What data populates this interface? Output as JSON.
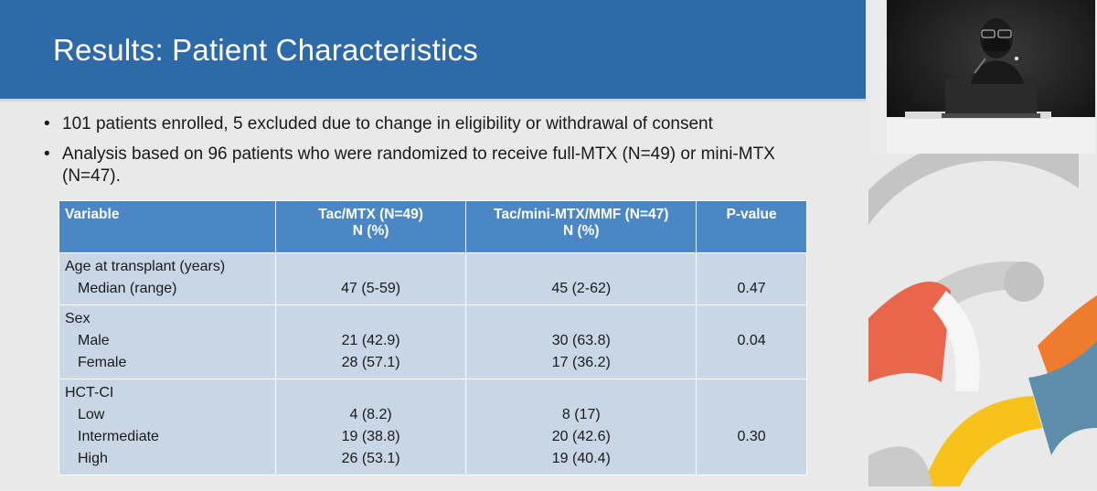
{
  "slide": {
    "title": "Results: Patient Characteristics",
    "bullets": [
      "101 patients enrolled, 5 excluded due to change in eligibility or withdrawal of consent",
      "Analysis based on 96 patients who were randomized to receive full-MTX (N=49) or mini-MTX (N=47)."
    ]
  },
  "table": {
    "headers": {
      "variable": "Variable",
      "col1_line1": "Tac/MTX (N=49)",
      "col1_line2": "N (%)",
      "col2_line1": "Tac/mini-MTX/MMF (N=47)",
      "col2_line2": "N (%)",
      "pvalue": "P-value"
    },
    "age": {
      "label": "Age at transplant (years)",
      "sub": "Median (range)",
      "mtx": "47 (5-59)",
      "mini": "45 (2-62)",
      "p": "0.47"
    },
    "sex": {
      "label": "Sex",
      "male": "Male",
      "female": "Female",
      "male_mtx": "21 (42.9)",
      "female_mtx": "28 (57.1)",
      "male_mini": "30 (63.8)",
      "female_mini": "17 (36.2)",
      "p": "0.04"
    },
    "hct": {
      "label": "HCT-CI",
      "low": "Low",
      "intermediate": "Intermediate",
      "high": "High",
      "low_mtx": "4 (8.2)",
      "int_mtx": "19 (38.8)",
      "high_mtx": "26 (53.1)",
      "low_mini": "8 (17)",
      "int_mini": "20 (42.6)",
      "high_mini": "19 (40.4)",
      "p": "0.30"
    }
  },
  "colors": {
    "title_bar": "#2e6aa8",
    "table_header": "#4b87c5",
    "table_cell": "#c9d6e6",
    "deco_orange": "#ef7b2e",
    "deco_red": "#e9654b",
    "deco_yellow": "#f6c21b",
    "deco_teal": "#5e8eab",
    "deco_gray": "#c2c2c2"
  },
  "icons": {
    "speaker_video": "presenter-video",
    "decoration": "conference-logo-arcs"
  }
}
